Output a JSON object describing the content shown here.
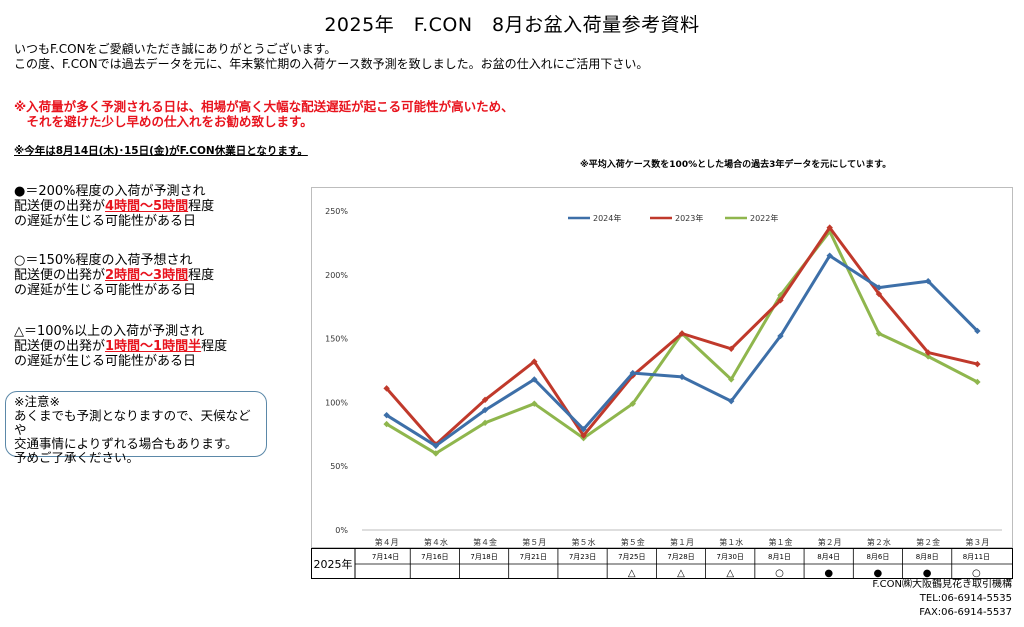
{
  "title": "2025年　F.CON　8月お盆入荷量参考資料",
  "intro": [
    "いつもF.CONをご愛顧いただき誠にありがとうございます。",
    "この度、F.CONでは過去データを元に、年末繁忙期の入荷ケース数予測を致しました。お盆の仕入れにご活用下さい。"
  ],
  "warning": [
    "※入荷量が多く予測される日は、相場が高く大幅な配送遅延が起こる可能性が高いため、",
    "　それを避けた少し早めの仕入れをお勧め致します。"
  ],
  "holiday_note": "※今年は8月14日(木)･15日(金)がF.CON休業日となります。",
  "basis_note": "※平均入荷ケース数を100%とした場合の過去3年データを元にしています。",
  "legend_items": [
    {
      "line1": "●＝200%程度の入荷が予測され",
      "pre": "配送便の出発が",
      "highlight": "4時間～5時間",
      "post": "程度",
      "line3": "の遅延が生じる可能性がある日"
    },
    {
      "line1": "○＝150%程度の入荷予想され",
      "pre": "配送便の出発が",
      "highlight": "2時間～3時間",
      "post": "程度",
      "line3": "の遅延が生じる可能性がある日"
    },
    {
      "line1": "△＝100%以上の入荷が予測され",
      "pre": "配送便の出発が",
      "highlight": "1時間～1時間半",
      "post": "程度",
      "line3": "の遅延が生じる可能性がある日"
    }
  ],
  "caution": {
    "heading": "※注意※",
    "lines": [
      "あくまでも予測となりますので、天候などや",
      "交通事情によりずれる場合もあります。",
      "予めご了承ください。"
    ]
  },
  "table": {
    "row_label": "2025年",
    "dates": [
      "7月14日",
      "7月16日",
      "7月18日",
      "7月21日",
      "7月23日",
      "7月25日",
      "7月28日",
      "7月30日",
      "8月1日",
      "8月4日",
      "8月6日",
      "8月8日",
      "8月11日"
    ],
    "marks": [
      "",
      "",
      "",
      "",
      "",
      "△",
      "△",
      "△",
      "○",
      "●",
      "●",
      "●",
      "○"
    ]
  },
  "footer": {
    "company": "F.CON㈱大阪鶴見花き取引機構",
    "tel": "TEL:06-6914-5535",
    "fax": "FAX:06-6914-5537"
  },
  "chart_data": {
    "type": "line",
    "categories": [
      "第４月",
      "第４水",
      "第４金",
      "第５月",
      "第５水",
      "第５金",
      "第１月",
      "第１水",
      "第１金",
      "第２月",
      "第２水",
      "第２金",
      "第３月"
    ],
    "series": [
      {
        "name": "2024年",
        "color": "#3d6fa8",
        "values": [
          90,
          66,
          94,
          118,
          79,
          123,
          120,
          101,
          152,
          215,
          190,
          195,
          156
        ]
      },
      {
        "name": "2023年",
        "color": "#c0392b",
        "values": [
          111,
          67,
          102,
          132,
          74,
          121,
          154,
          142,
          180,
          237,
          185,
          139,
          130
        ]
      },
      {
        "name": "2022年",
        "color": "#8fb64d",
        "values": [
          83,
          60,
          84,
          99,
          72,
          99,
          154,
          118,
          184,
          234,
          154,
          136,
          116
        ]
      }
    ],
    "ylim": [
      0,
      250
    ],
    "yticks": [
      0,
      50,
      100,
      150,
      200,
      250
    ],
    "ytick_suffix": "%",
    "grid": false,
    "legend": "top"
  }
}
